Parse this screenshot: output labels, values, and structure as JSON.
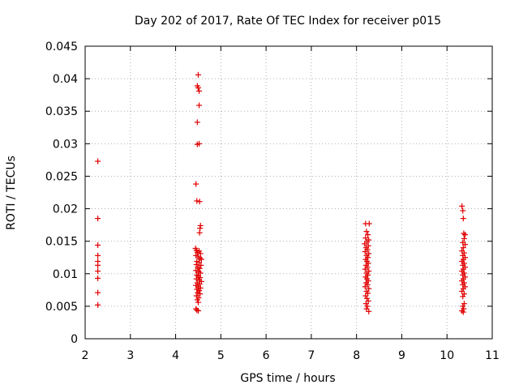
{
  "chart_data": {
    "type": "scatter",
    "title": "Day 202 of 2017, Rate Of TEC Index for receiver p015",
    "xlabel": "GPS time / hours",
    "ylabel": "ROTI / TECUs",
    "xlim": [
      2,
      11
    ],
    "ylim": [
      0,
      0.045
    ],
    "xticks": [
      2,
      3,
      4,
      5,
      6,
      7,
      8,
      9,
      10,
      11
    ],
    "yticks": [
      0,
      0.005,
      0.01,
      0.015,
      0.02,
      0.025,
      0.03,
      0.035,
      0.04,
      0.045
    ],
    "xtick_labels": [
      "2",
      "3",
      "4",
      "5",
      "6",
      "7",
      "8",
      "9",
      "10",
      "11"
    ],
    "ytick_labels": [
      "0",
      "0.005",
      "0.01",
      "0.015",
      "0.02",
      "0.025",
      "0.03",
      "0.035",
      "0.04",
      "0.045"
    ],
    "grid": true,
    "marker": "+",
    "marker_color": "#e00000",
    "series": [
      {
        "name": "ROTI",
        "points": [
          [
            2.28,
            0.0273
          ],
          [
            2.28,
            0.0185
          ],
          [
            2.28,
            0.0144
          ],
          [
            2.28,
            0.0128
          ],
          [
            2.28,
            0.0119
          ],
          [
            2.28,
            0.0113
          ],
          [
            2.28,
            0.0104
          ],
          [
            2.28,
            0.0093
          ],
          [
            2.28,
            0.0071
          ],
          [
            2.28,
            0.0052
          ],
          [
            4.5,
            0.0406
          ],
          [
            4.48,
            0.0389
          ],
          [
            4.5,
            0.0386
          ],
          [
            4.52,
            0.0381
          ],
          [
            4.52,
            0.0359
          ],
          [
            4.48,
            0.0333
          ],
          [
            4.48,
            0.0299
          ],
          [
            4.52,
            0.03
          ],
          [
            4.45,
            0.0238
          ],
          [
            4.47,
            0.0212
          ],
          [
            4.53,
            0.0211
          ],
          [
            4.55,
            0.0174
          ],
          [
            4.54,
            0.017
          ],
          [
            4.53,
            0.0163
          ],
          [
            4.44,
            0.0139
          ],
          [
            4.46,
            0.0136
          ],
          [
            4.48,
            0.0133
          ],
          [
            4.52,
            0.0135
          ],
          [
            4.55,
            0.0131
          ],
          [
            4.45,
            0.0128
          ],
          [
            4.5,
            0.0126
          ],
          [
            4.54,
            0.0124
          ],
          [
            4.57,
            0.0122
          ],
          [
            4.47,
            0.0119
          ],
          [
            4.52,
            0.0117
          ],
          [
            4.46,
            0.0114
          ],
          [
            4.56,
            0.0113
          ],
          [
            4.49,
            0.011
          ],
          [
            4.53,
            0.0108
          ],
          [
            4.45,
            0.0105
          ],
          [
            4.51,
            0.0103
          ],
          [
            4.55,
            0.0101
          ],
          [
            4.47,
            0.0098
          ],
          [
            4.5,
            0.0096
          ],
          [
            4.54,
            0.0094
          ],
          [
            4.46,
            0.0092
          ],
          [
            4.52,
            0.009
          ],
          [
            4.57,
            0.0088
          ],
          [
            4.48,
            0.0086
          ],
          [
            4.53,
            0.0084
          ],
          [
            4.45,
            0.0082
          ],
          [
            4.5,
            0.008
          ],
          [
            4.55,
            0.0078
          ],
          [
            4.47,
            0.0076
          ],
          [
            4.52,
            0.0074
          ],
          [
            4.49,
            0.0071
          ],
          [
            4.54,
            0.0069
          ],
          [
            4.46,
            0.0066
          ],
          [
            4.51,
            0.0063
          ],
          [
            4.48,
            0.006
          ],
          [
            4.5,
            0.0056
          ],
          [
            4.45,
            0.0046
          ],
          [
            4.47,
            0.0044
          ],
          [
            4.5,
            0.0043
          ],
          [
            8.2,
            0.0177
          ],
          [
            8.28,
            0.0177
          ],
          [
            8.22,
            0.0165
          ],
          [
            8.25,
            0.016
          ],
          [
            8.2,
            0.0155
          ],
          [
            8.27,
            0.0152
          ],
          [
            8.23,
            0.0149
          ],
          [
            8.18,
            0.0146
          ],
          [
            8.26,
            0.0143
          ],
          [
            8.21,
            0.014
          ],
          [
            8.24,
            0.0137
          ],
          [
            8.19,
            0.0134
          ],
          [
            8.27,
            0.0131
          ],
          [
            8.22,
            0.0128
          ],
          [
            8.25,
            0.0125
          ],
          [
            8.2,
            0.0122
          ],
          [
            8.23,
            0.0119
          ],
          [
            8.26,
            0.0116
          ],
          [
            8.21,
            0.0113
          ],
          [
            8.24,
            0.011
          ],
          [
            8.19,
            0.0107
          ],
          [
            8.27,
            0.0104
          ],
          [
            8.22,
            0.0101
          ],
          [
            8.25,
            0.0098
          ],
          [
            8.2,
            0.0095
          ],
          [
            8.23,
            0.0092
          ],
          [
            8.26,
            0.0089
          ],
          [
            8.21,
            0.0086
          ],
          [
            8.24,
            0.0083
          ],
          [
            8.19,
            0.008
          ],
          [
            8.27,
            0.0077
          ],
          [
            8.22,
            0.0073
          ],
          [
            8.25,
            0.007
          ],
          [
            8.2,
            0.0066
          ],
          [
            8.23,
            0.0062
          ],
          [
            8.26,
            0.0058
          ],
          [
            8.21,
            0.0054
          ],
          [
            8.24,
            0.005
          ],
          [
            8.22,
            0.0046
          ],
          [
            8.27,
            0.0042
          ],
          [
            10.33,
            0.0204
          ],
          [
            10.35,
            0.0197
          ],
          [
            10.36,
            0.0185
          ],
          [
            10.37,
            0.0162
          ],
          [
            10.4,
            0.016
          ],
          [
            10.38,
            0.0154
          ],
          [
            10.35,
            0.0148
          ],
          [
            10.4,
            0.0145
          ],
          [
            10.36,
            0.014
          ],
          [
            10.33,
            0.0135
          ],
          [
            10.38,
            0.0132
          ],
          [
            10.35,
            0.0128
          ],
          [
            10.4,
            0.0125
          ],
          [
            10.36,
            0.0122
          ],
          [
            10.33,
            0.0119
          ],
          [
            10.38,
            0.0116
          ],
          [
            10.35,
            0.0113
          ],
          [
            10.4,
            0.011
          ],
          [
            10.36,
            0.0107
          ],
          [
            10.33,
            0.0104
          ],
          [
            10.38,
            0.0101
          ],
          [
            10.35,
            0.0098
          ],
          [
            10.4,
            0.0095
          ],
          [
            10.36,
            0.0092
          ],
          [
            10.33,
            0.0089
          ],
          [
            10.38,
            0.0086
          ],
          [
            10.35,
            0.0083
          ],
          [
            10.4,
            0.008
          ],
          [
            10.36,
            0.0077
          ],
          [
            10.33,
            0.0073
          ],
          [
            10.38,
            0.0069
          ],
          [
            10.35,
            0.0065
          ],
          [
            10.38,
            0.0054
          ],
          [
            10.35,
            0.005
          ],
          [
            10.37,
            0.0046
          ],
          [
            10.33,
            0.0043
          ],
          [
            10.36,
            0.0041
          ]
        ]
      }
    ]
  }
}
